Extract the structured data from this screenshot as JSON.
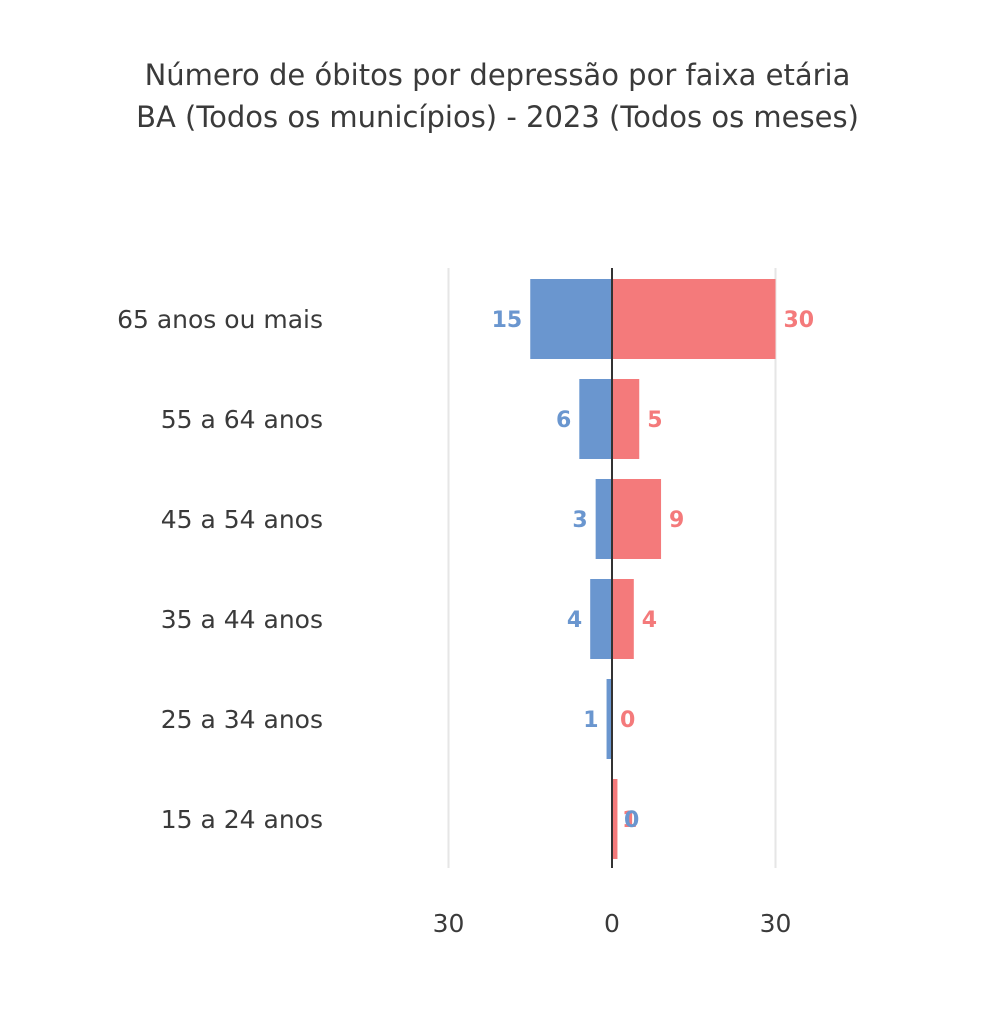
{
  "chart_data": {
    "type": "bar",
    "orientation": "horizontal-diverging",
    "title": "Número de óbitos por depressão por faixa etária",
    "subtitle": "BA (Todos os municípios) - 2023 (Todos os meses)",
    "categories": [
      "65 anos ou mais",
      "55 a 64 anos",
      "45 a 54 anos",
      "35 a 44 anos",
      "25 a 34 anos",
      "15 a 24 anos"
    ],
    "series": [
      {
        "values": [
          15,
          6,
          3,
          4,
          1,
          0
        ],
        "color": "#6a96cf",
        "side": "left"
      },
      {
        "values": [
          30,
          5,
          9,
          4,
          0,
          1
        ],
        "color": "#f47a7b",
        "side": "right"
      }
    ],
    "ticks": [
      {
        "value": -30,
        "label": "30"
      },
      {
        "value": 0,
        "label": "0"
      },
      {
        "value": 30,
        "label": "30"
      }
    ],
    "xlim": [
      -30,
      30
    ],
    "grid": true,
    "legend": "none"
  }
}
